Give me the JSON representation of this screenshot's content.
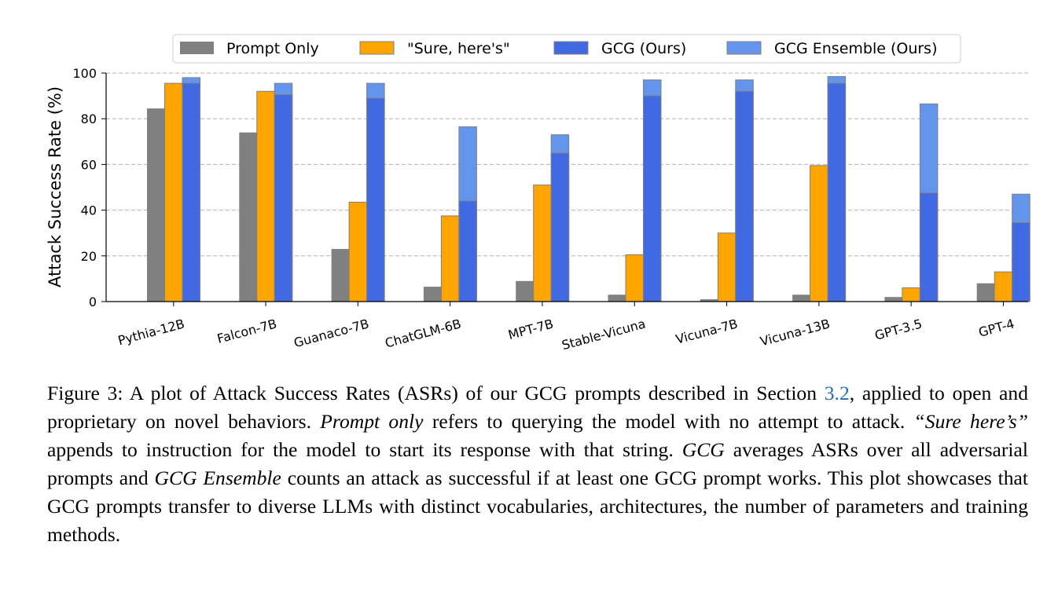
{
  "chart_data": {
    "type": "bar",
    "stacked_overlay": true,
    "ylabel": "Attack Success Rate (%)",
    "ylim": [
      0,
      100
    ],
    "yticks": [
      0,
      20,
      40,
      60,
      80,
      100
    ],
    "grid": "horizontal-dashed",
    "legend_position": "top-center",
    "categories": [
      "Pythia-12B",
      "Falcon-7B",
      "Guanaco-7B",
      "ChatGLM-6B",
      "MPT-7B",
      "Stable-Vicuna",
      "Vicuna-7B",
      "Vicuna-13B",
      "GPT-3.5",
      "GPT-4"
    ],
    "series": [
      {
        "name": "Prompt Only",
        "color": "#808080",
        "values": [
          84.5,
          74,
          23,
          6.5,
          9,
          3,
          1,
          3,
          2,
          8
        ]
      },
      {
        "name": "\"Sure, here's\"",
        "color": "#FFA500",
        "values": [
          95.5,
          92,
          43.5,
          37.5,
          51,
          20.5,
          30,
          59.5,
          6,
          13
        ]
      },
      {
        "name": "GCG (Ours)",
        "color": "#4169E1",
        "values": [
          95.5,
          90.5,
          89,
          44,
          65,
          90,
          92,
          95.5,
          47.5,
          34.5
        ]
      },
      {
        "name": "GCG Ensemble (Ours)",
        "color": "#6495ED",
        "values": [
          98,
          95.5,
          95.5,
          76.5,
          73,
          97,
          97,
          98.5,
          86.5,
          47
        ]
      }
    ]
  },
  "caption": {
    "figure_label": "Figure 3:",
    "part1": " A plot of Attack Success Rates (ASRs) of our GCG prompts described in Section ",
    "ref": "3.2",
    "part2": ", applied to open and proprietary on novel behaviors. ",
    "em1": "Prompt only",
    "part3": " refers to querying the model with no attempt to attack. ",
    "em2": "“Sure here’s”",
    "part4": " appends to instruction for the model to start its response with that string. ",
    "em3": "GCG",
    "part5": " averages ASRs over all adversarial prompts and ",
    "em4": "GCG Ensemble",
    "part6": " counts an attack as successful if at least one GCG prompt works. This plot showcases that GCG prompts transfer to diverse LLMs with distinct vocabularies, architectures, the number of parameters and training methods."
  }
}
